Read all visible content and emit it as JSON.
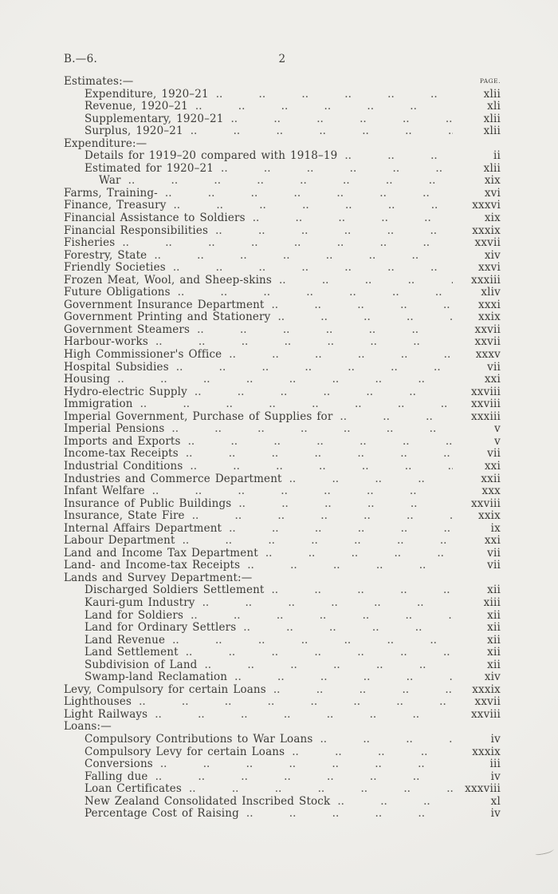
{
  "colors": {
    "paper": "#efeeea",
    "ink": "#3c3b37"
  },
  "header": {
    "doc_ref": "B.—6.",
    "sheet_number": "2"
  },
  "index": {
    "page_column_header": "PAGE.",
    "entries": [
      {
        "label": "Estimates:—",
        "section": true,
        "indent": 0,
        "page": "",
        "page_col": "PAGE."
      },
      {
        "label": "Expenditure, 1920–21",
        "indent": 1,
        "page": "xlii"
      },
      {
        "label": "Revenue, 1920–21",
        "indent": 1,
        "page": "xli"
      },
      {
        "label": "Supplementary, 1920–21",
        "indent": 1,
        "page": "xlii"
      },
      {
        "label": "Surplus, 1920–21",
        "indent": 1,
        "page": "xlii"
      },
      {
        "label": "Expenditure:—",
        "section": true,
        "indent": 0,
        "page": ""
      },
      {
        "label": "Details for 1919–20 compared with 1918–19",
        "indent": 1,
        "page": "ii"
      },
      {
        "label": "Estimated for 1920–21",
        "indent": 1,
        "page": "xlii"
      },
      {
        "label": "War",
        "indent": 2,
        "page": "xix"
      },
      {
        "label": "Farms, Training-",
        "indent": 0,
        "page": "xvi"
      },
      {
        "label": "Finance, Treasury",
        "indent": 0,
        "page": "xxxvi"
      },
      {
        "label": "Financial Assistance to Soldiers",
        "indent": 0,
        "page": "xix"
      },
      {
        "label": "Financial Responsibilities",
        "indent": 0,
        "page": "xxxix"
      },
      {
        "label": "Fisheries",
        "indent": 0,
        "page": "xxvii"
      },
      {
        "label": "Forestry, State",
        "indent": 0,
        "page": "xiv"
      },
      {
        "label": "Friendly Societies",
        "indent": 0,
        "page": "xxvi"
      },
      {
        "label": "Frozen Meat, Wool, and Sheep-skins",
        "indent": 0,
        "page": "xxxiii"
      },
      {
        "label": "Future Obligations",
        "indent": 0,
        "page": "xliv"
      },
      {
        "label": "Government Insurance Department",
        "indent": 0,
        "page": "xxxi"
      },
      {
        "label": "Government Printing and Stationery",
        "indent": 0,
        "page": "xxix"
      },
      {
        "label": "Government Steamers",
        "indent": 0,
        "page": "xxvii"
      },
      {
        "label": "Harbour-works",
        "indent": 0,
        "page": "xxvii"
      },
      {
        "label": "High Commissioner's Office",
        "indent": 0,
        "page": "xxxv"
      },
      {
        "label": "Hospital Subsidies",
        "indent": 0,
        "page": "vii"
      },
      {
        "label": "Housing",
        "indent": 0,
        "page": "xxi"
      },
      {
        "label": "Hydro-electric Supply",
        "indent": 0,
        "page": "xxviii"
      },
      {
        "label": "Immigration",
        "indent": 0,
        "page": "xxviii"
      },
      {
        "label": "Imperial Government, Purchase of Supplies for",
        "indent": 0,
        "page": "xxxiii"
      },
      {
        "label": "Imperial Pensions",
        "indent": 0,
        "page": "v"
      },
      {
        "label": "Imports and Exports",
        "indent": 0,
        "page": "v"
      },
      {
        "label": "Income-tax Receipts",
        "indent": 0,
        "page": "vii"
      },
      {
        "label": "Industrial Conditions",
        "indent": 0,
        "page": "xxi"
      },
      {
        "label": "Industries and Commerce Department",
        "indent": 0,
        "page": "xxii"
      },
      {
        "label": "Infant Welfare",
        "indent": 0,
        "page": "xxx"
      },
      {
        "label": "Insurance of Public Buildings",
        "indent": 0,
        "page": "xxviii"
      },
      {
        "label": "Insurance, State Fire",
        "indent": 0,
        "page": "xxix"
      },
      {
        "label": "Internal Affairs Department",
        "indent": 0,
        "page": "ix"
      },
      {
        "label": "Labour Department",
        "indent": 0,
        "page": "xxi"
      },
      {
        "label": "Land and Income Tax Department",
        "indent": 0,
        "page": "vii"
      },
      {
        "label": "Land- and Income-tax Receipts",
        "indent": 0,
        "page": "vii"
      },
      {
        "label": "Lands and Survey Department:—",
        "section": true,
        "indent": 0,
        "page": ""
      },
      {
        "label": "Discharged Soldiers Settlement",
        "indent": 1,
        "page": "xii"
      },
      {
        "label": "Kauri-gum Industry",
        "indent": 1,
        "page": "xiii"
      },
      {
        "label": "Land for Soldiers",
        "indent": 1,
        "page": "xii"
      },
      {
        "label": "Land for Ordinary Settlers",
        "indent": 1,
        "page": "xii"
      },
      {
        "label": "Land Revenue",
        "indent": 1,
        "page": "xii"
      },
      {
        "label": "Land Settlement",
        "indent": 1,
        "page": "xii"
      },
      {
        "label": "Subdivision of Land",
        "indent": 1,
        "page": "xii"
      },
      {
        "label": "Swamp-land Reclamation",
        "indent": 1,
        "page": "xiv"
      },
      {
        "label": "Levy, Compulsory for certain Loans",
        "indent": 0,
        "page": "xxxix"
      },
      {
        "label": "Lighthouses",
        "indent": 0,
        "page": "xxvii"
      },
      {
        "label": "Light Railways",
        "indent": 0,
        "page": "xxviii"
      },
      {
        "label": "Loans:—",
        "section": true,
        "indent": 0,
        "page": ""
      },
      {
        "label": "Compulsory Contributions to War Loans",
        "indent": 1,
        "page": "iv"
      },
      {
        "label": "Compulsory Levy for certain Loans",
        "indent": 1,
        "page": "xxxix"
      },
      {
        "label": "Conversions",
        "indent": 1,
        "page": "iii"
      },
      {
        "label": "Falling due",
        "indent": 1,
        "page": "iv"
      },
      {
        "label": "Loan Certificates",
        "indent": 1,
        "page": "xxxviii"
      },
      {
        "label": "New Zealand Consolidated Inscribed Stock",
        "indent": 1,
        "page": "xl"
      },
      {
        "label": "Percentage Cost of Raising",
        "indent": 1,
        "page": "iv"
      }
    ]
  }
}
